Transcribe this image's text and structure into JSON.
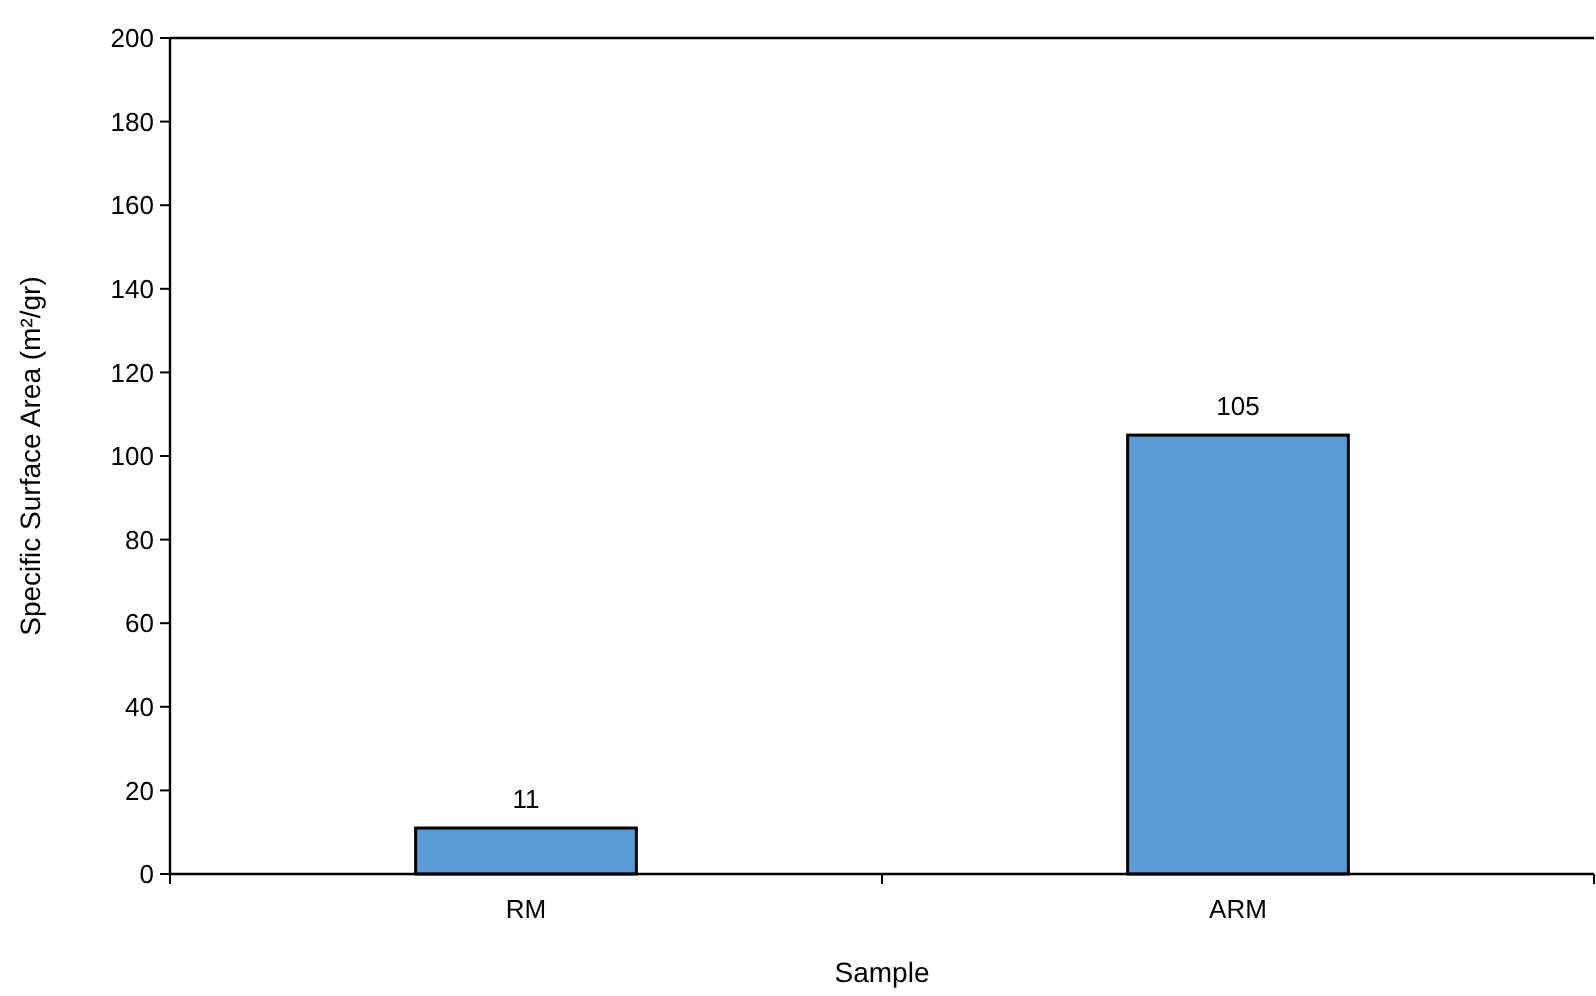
{
  "chart_data": {
    "type": "bar",
    "xlabel": "Sample",
    "ylabel": "Specific Surface Area (m²/gr)",
    "categories": [
      "RM",
      "ARM"
    ],
    "values": [
      11,
      105
    ],
    "color": "#5b9bd5",
    "ylim": [
      0,
      200
    ],
    "yticks": [
      0,
      20,
      40,
      60,
      80,
      100,
      120,
      140,
      160,
      180,
      200
    ],
    "data_labels": true,
    "grid": false
  }
}
